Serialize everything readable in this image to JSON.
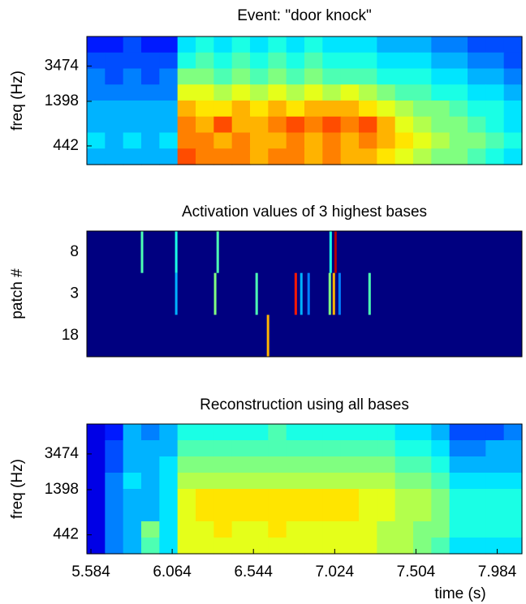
{
  "chart_data": [
    {
      "type": "heatmap",
      "title": "Event: \"door knock\"",
      "ylabel": "freq (Hz)",
      "xlim": [
        5.56,
        8.13
      ],
      "ylim": [
        273,
        7450
      ],
      "yscale": "log",
      "yticks": [
        442,
        1398,
        3474
      ],
      "clim": [
        0,
        1
      ],
      "colormap": "jet",
      "values": [
        [
          0.15,
          0.15,
          0.2,
          0.15,
          0.15,
          0.35,
          0.4,
          0.35,
          0.4,
          0.35,
          0.4,
          0.35,
          0.4,
          0.35,
          0.35,
          0.35,
          0.3,
          0.3,
          0.3,
          0.25,
          0.25,
          0.2,
          0.2,
          0.2
        ],
        [
          0.2,
          0.2,
          0.2,
          0.2,
          0.2,
          0.4,
          0.45,
          0.4,
          0.45,
          0.4,
          0.45,
          0.4,
          0.45,
          0.4,
          0.4,
          0.4,
          0.35,
          0.35,
          0.35,
          0.3,
          0.3,
          0.25,
          0.25,
          0.2
        ],
        [
          0.25,
          0.2,
          0.25,
          0.2,
          0.25,
          0.5,
          0.5,
          0.45,
          0.5,
          0.45,
          0.5,
          0.45,
          0.5,
          0.45,
          0.45,
          0.45,
          0.4,
          0.4,
          0.4,
          0.35,
          0.35,
          0.3,
          0.3,
          0.25
        ],
        [
          0.25,
          0.25,
          0.25,
          0.25,
          0.25,
          0.6,
          0.6,
          0.55,
          0.6,
          0.55,
          0.6,
          0.55,
          0.6,
          0.55,
          0.6,
          0.55,
          0.5,
          0.45,
          0.45,
          0.4,
          0.4,
          0.35,
          0.35,
          0.3
        ],
        [
          0.3,
          0.3,
          0.3,
          0.3,
          0.3,
          0.7,
          0.65,
          0.65,
          0.7,
          0.65,
          0.7,
          0.65,
          0.7,
          0.7,
          0.7,
          0.65,
          0.6,
          0.55,
          0.5,
          0.5,
          0.45,
          0.4,
          0.4,
          0.35
        ],
        [
          0.3,
          0.3,
          0.3,
          0.3,
          0.3,
          0.75,
          0.7,
          0.8,
          0.7,
          0.7,
          0.75,
          0.8,
          0.75,
          0.8,
          0.75,
          0.8,
          0.7,
          0.6,
          0.55,
          0.5,
          0.5,
          0.45,
          0.4,
          0.35
        ],
        [
          0.35,
          0.3,
          0.35,
          0.3,
          0.35,
          0.75,
          0.75,
          0.7,
          0.75,
          0.7,
          0.7,
          0.75,
          0.7,
          0.75,
          0.7,
          0.75,
          0.7,
          0.65,
          0.6,
          0.55,
          0.5,
          0.5,
          0.45,
          0.4
        ],
        [
          0.3,
          0.3,
          0.3,
          0.3,
          0.3,
          0.8,
          0.75,
          0.75,
          0.75,
          0.7,
          0.75,
          0.75,
          0.7,
          0.75,
          0.7,
          0.7,
          0.65,
          0.6,
          0.55,
          0.5,
          0.5,
          0.45,
          0.4,
          0.35
        ]
      ]
    },
    {
      "type": "activation",
      "title": "Activation values of 3 highest bases",
      "ylabel": "patch #",
      "xlim": [
        5.56,
        8.13
      ],
      "clim": [
        0,
        1
      ],
      "colormap": "jet",
      "categories": [
        "8",
        "3",
        "18"
      ],
      "events": [
        {
          "x": [
            5.886,
            6.088,
            6.333,
            7.0,
            7.029
          ],
          "values": [
            0.45,
            0.4,
            0.45,
            0.4,
            0.95
          ]
        },
        {
          "x": [
            6.088,
            6.318,
            6.563,
            6.794,
            6.827,
            6.87,
            6.995,
            7.019,
            7.053,
            7.23
          ],
          "values": [
            0.3,
            0.5,
            0.45,
            0.85,
            0.3,
            0.25,
            0.5,
            0.7,
            0.25,
            0.45
          ]
        },
        {
          "x": [
            6.63
          ],
          "values": [
            0.7
          ]
        }
      ]
    },
    {
      "type": "heatmap",
      "title": "Reconstruction using all bases",
      "ylabel": "freq (Hz)",
      "xlabel": "time (s)",
      "xlim": [
        5.56,
        8.13
      ],
      "xticks": [
        5.584,
        6.064,
        6.544,
        7.024,
        7.504,
        7.984
      ],
      "ylim": [
        273,
        7450
      ],
      "yscale": "log",
      "yticks": [
        442,
        1398,
        3474
      ],
      "clim": [
        0,
        1
      ],
      "colormap": "jet",
      "values": [
        [
          0.1,
          0.15,
          0.3,
          0.25,
          0.3,
          0.4,
          0.4,
          0.4,
          0.4,
          0.4,
          0.45,
          0.4,
          0.4,
          0.4,
          0.4,
          0.4,
          0.4,
          0.35,
          0.35,
          0.3,
          0.2,
          0.2,
          0.2,
          0.25
        ],
        [
          0.1,
          0.2,
          0.3,
          0.3,
          0.3,
          0.45,
          0.45,
          0.45,
          0.45,
          0.45,
          0.45,
          0.45,
          0.45,
          0.45,
          0.45,
          0.45,
          0.45,
          0.4,
          0.4,
          0.35,
          0.25,
          0.25,
          0.3,
          0.3
        ],
        [
          0.1,
          0.2,
          0.3,
          0.3,
          0.35,
          0.5,
          0.5,
          0.5,
          0.5,
          0.5,
          0.5,
          0.5,
          0.5,
          0.5,
          0.5,
          0.5,
          0.5,
          0.45,
          0.45,
          0.4,
          0.3,
          0.3,
          0.3,
          0.3
        ],
        [
          0.1,
          0.25,
          0.35,
          0.3,
          0.35,
          0.55,
          0.55,
          0.55,
          0.55,
          0.55,
          0.55,
          0.55,
          0.55,
          0.55,
          0.55,
          0.55,
          0.55,
          0.5,
          0.5,
          0.45,
          0.35,
          0.35,
          0.35,
          0.35
        ],
        [
          0.1,
          0.25,
          0.3,
          0.3,
          0.35,
          0.6,
          0.65,
          0.65,
          0.65,
          0.65,
          0.65,
          0.65,
          0.65,
          0.65,
          0.65,
          0.6,
          0.6,
          0.55,
          0.55,
          0.5,
          0.4,
          0.4,
          0.4,
          0.4
        ],
        [
          0.1,
          0.25,
          0.3,
          0.3,
          0.35,
          0.6,
          0.65,
          0.65,
          0.65,
          0.65,
          0.65,
          0.65,
          0.65,
          0.65,
          0.65,
          0.6,
          0.6,
          0.55,
          0.55,
          0.5,
          0.4,
          0.4,
          0.4,
          0.4
        ],
        [
          0.1,
          0.25,
          0.3,
          0.5,
          0.35,
          0.6,
          0.6,
          0.65,
          0.6,
          0.6,
          0.65,
          0.6,
          0.6,
          0.6,
          0.6,
          0.6,
          0.55,
          0.55,
          0.5,
          0.5,
          0.4,
          0.4,
          0.4,
          0.4
        ],
        [
          0.1,
          0.25,
          0.3,
          0.45,
          0.35,
          0.6,
          0.6,
          0.6,
          0.6,
          0.6,
          0.6,
          0.6,
          0.6,
          0.6,
          0.6,
          0.6,
          0.55,
          0.55,
          0.5,
          0.45,
          0.35,
          0.35,
          0.35,
          0.35
        ]
      ]
    }
  ]
}
